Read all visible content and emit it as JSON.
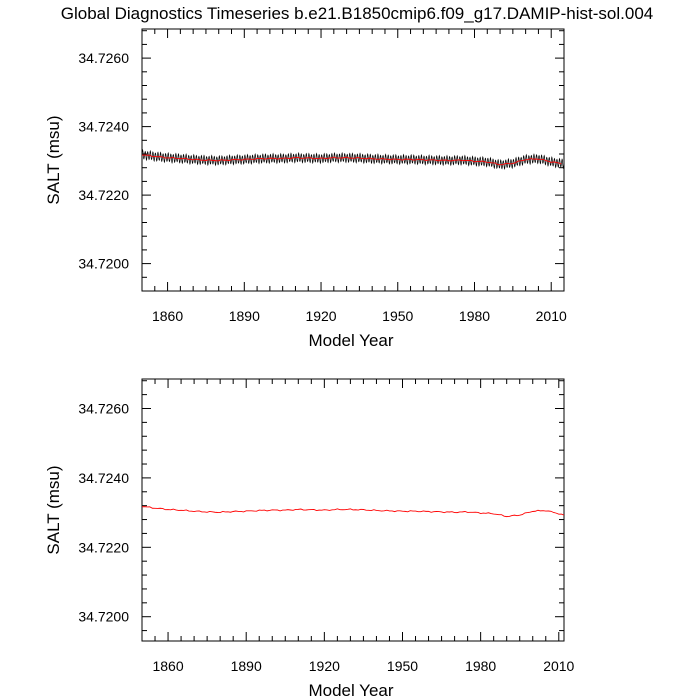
{
  "title": "Global Diagnostics Timeseries b.e21.B1850cmip6.f09_g17.DAMIP-hist-sol.004",
  "colors": {
    "monthly": "#000000",
    "annual": "#ff0000",
    "axis": "#000000"
  },
  "chart_data": [
    {
      "type": "line",
      "xlabel": "Model Year",
      "ylabel": "SALT (msu)",
      "xlim": [
        1850,
        2015
      ],
      "ylim": [
        34.7192,
        34.72685
      ],
      "xticks": [
        1860,
        1890,
        1920,
        1950,
        1980,
        2010
      ],
      "xtick_labels": [
        "1860",
        "1890",
        "1920",
        "1950",
        "1980",
        "2010"
      ],
      "yticks": [
        34.72,
        34.722,
        34.724,
        34.726
      ],
      "ytick_labels": [
        "34.7200",
        "34.7220",
        "34.7240",
        "34.7260"
      ],
      "grid": false,
      "legend": "none",
      "series": [
        {
          "resolution": "monthly",
          "color": "#000000",
          "x": [
            1850,
            1855,
            1860,
            1865,
            1870,
            1875,
            1880,
            1885,
            1890,
            1895,
            1900,
            1905,
            1910,
            1915,
            1920,
            1925,
            1930,
            1935,
            1940,
            1945,
            1950,
            1955,
            1960,
            1965,
            1970,
            1975,
            1980,
            1985,
            1990,
            1995,
            2000,
            2005,
            2010,
            2014
          ],
          "mean": [
            34.72318,
            34.72313,
            34.72309,
            34.72307,
            34.72304,
            34.72302,
            34.72301,
            34.72303,
            34.72304,
            34.72306,
            34.72307,
            34.72307,
            34.72309,
            34.72308,
            34.72307,
            34.72309,
            34.72309,
            34.72308,
            34.72306,
            34.72305,
            34.72304,
            34.72304,
            34.72303,
            34.72302,
            34.72301,
            34.72302,
            34.72299,
            34.72297,
            34.72289,
            34.72293,
            34.72304,
            34.72306,
            34.72297,
            34.72292
          ],
          "seasonal_amplitude": 0.00014
        },
        {
          "resolution": "annual",
          "color": "#ff0000",
          "x": [
            1850,
            1855,
            1860,
            1865,
            1870,
            1875,
            1880,
            1885,
            1890,
            1895,
            1900,
            1905,
            1910,
            1915,
            1920,
            1925,
            1930,
            1935,
            1940,
            1945,
            1950,
            1955,
            1960,
            1965,
            1970,
            1975,
            1980,
            1985,
            1990,
            1995,
            2000,
            2005,
            2010,
            2014
          ],
          "values": [
            34.72318,
            34.72313,
            34.72309,
            34.72307,
            34.72304,
            34.72302,
            34.72301,
            34.72303,
            34.72304,
            34.72306,
            34.72307,
            34.72307,
            34.72309,
            34.72308,
            34.72307,
            34.72309,
            34.72309,
            34.72308,
            34.72306,
            34.72305,
            34.72304,
            34.72304,
            34.72303,
            34.72302,
            34.72301,
            34.72302,
            34.72299,
            34.72297,
            34.72289,
            34.72293,
            34.72304,
            34.72306,
            34.72297,
            34.72292
          ]
        }
      ]
    },
    {
      "type": "line",
      "xlabel": "Model Year",
      "ylabel": "SALT (msu)",
      "xlim": [
        1850,
        2012
      ],
      "ylim": [
        34.7193,
        34.72685
      ],
      "xticks": [
        1860,
        1890,
        1920,
        1950,
        1980,
        2010
      ],
      "xtick_labels": [
        "1860",
        "1890",
        "1920",
        "1950",
        "1980",
        "2010"
      ],
      "yticks": [
        34.72,
        34.722,
        34.724,
        34.726
      ],
      "ytick_labels": [
        "34.7200",
        "34.7220",
        "34.7240",
        "34.7260"
      ],
      "grid": false,
      "legend": "none",
      "series": [
        {
          "resolution": "annual",
          "color": "#ff0000",
          "x": [
            1850,
            1855,
            1860,
            1865,
            1870,
            1875,
            1880,
            1885,
            1890,
            1895,
            1900,
            1905,
            1910,
            1915,
            1920,
            1925,
            1930,
            1935,
            1940,
            1945,
            1950,
            1955,
            1960,
            1965,
            1970,
            1975,
            1980,
            1985,
            1990,
            1995,
            2000,
            2005,
            2010,
            2012
          ],
          "values": [
            34.72318,
            34.72313,
            34.72309,
            34.72307,
            34.72304,
            34.72302,
            34.72301,
            34.72303,
            34.72304,
            34.72306,
            34.72307,
            34.72307,
            34.72309,
            34.72308,
            34.72307,
            34.72309,
            34.72309,
            34.72308,
            34.72306,
            34.72305,
            34.72304,
            34.72304,
            34.72303,
            34.72302,
            34.72301,
            34.72302,
            34.72299,
            34.72297,
            34.72289,
            34.72293,
            34.72304,
            34.72306,
            34.72297,
            34.72292
          ]
        }
      ]
    }
  ]
}
